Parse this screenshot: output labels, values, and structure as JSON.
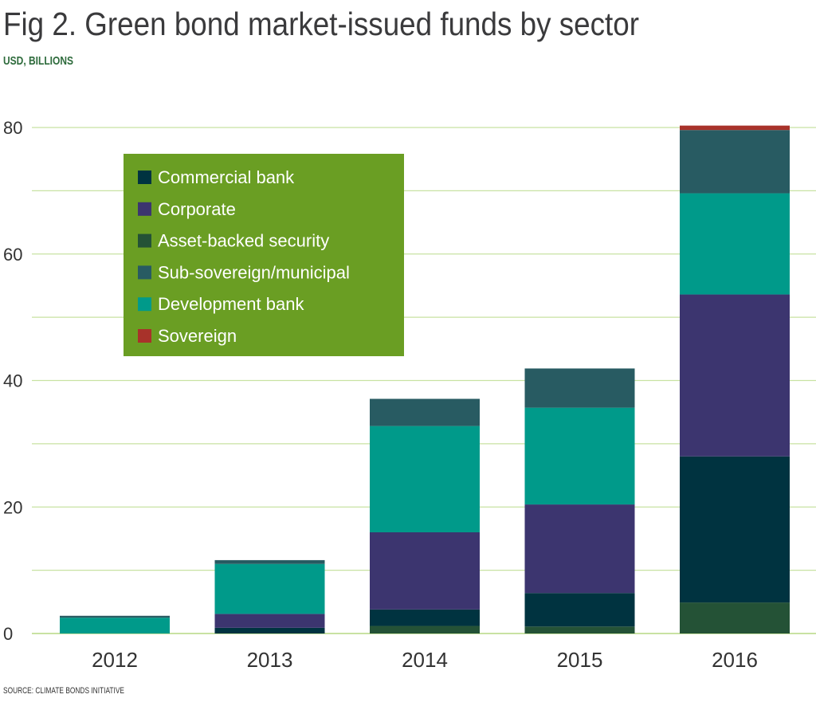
{
  "chart_data": {
    "type": "bar",
    "stacked": true,
    "title": "Fig 2. Green bond market-issued funds by sector",
    "subtitle": "USD, BILLIONS",
    "source": "SOURCE: CLIMATE BONDS INITIATIVE",
    "xlabel": "",
    "ylabel": "",
    "ylim": [
      0,
      80
    ],
    "yticks": [
      0,
      20,
      40,
      60,
      80
    ],
    "grid": true,
    "grid_step": 10,
    "legend_placement": "top-left",
    "legend_background": "#6a9e23",
    "categories": [
      "2012",
      "2013",
      "2014",
      "2015",
      "2016"
    ],
    "series": [
      {
        "name": "Asset-backed security",
        "color": "#245236",
        "values": [
          0,
          0,
          1.2,
          1.1,
          4.9
        ]
      },
      {
        "name": "Commercial bank",
        "color": "#003340",
        "values": [
          0,
          0.9,
          2.6,
          5.3,
          23.1
        ]
      },
      {
        "name": "Corporate",
        "color": "#3c356f",
        "values": [
          0,
          2.2,
          12.2,
          14.0,
          25.6
        ]
      },
      {
        "name": "Development bank",
        "color": "#009a8a",
        "values": [
          2.5,
          7.9,
          16.8,
          15.3,
          16.0
        ]
      },
      {
        "name": "Sub-sovereign/municipal",
        "color": "#285b62",
        "values": [
          0.3,
          0.6,
          4.3,
          6.2,
          10.0
        ]
      },
      {
        "name": "Sovereign",
        "color": "#a8322a",
        "values": [
          0,
          0,
          0,
          0,
          0.7
        ]
      }
    ],
    "legend_order": [
      "Commercial bank",
      "Corporate",
      "Asset-backed security",
      "Sub-sovereign/municipal",
      "Development bank",
      "Sovereign"
    ]
  }
}
